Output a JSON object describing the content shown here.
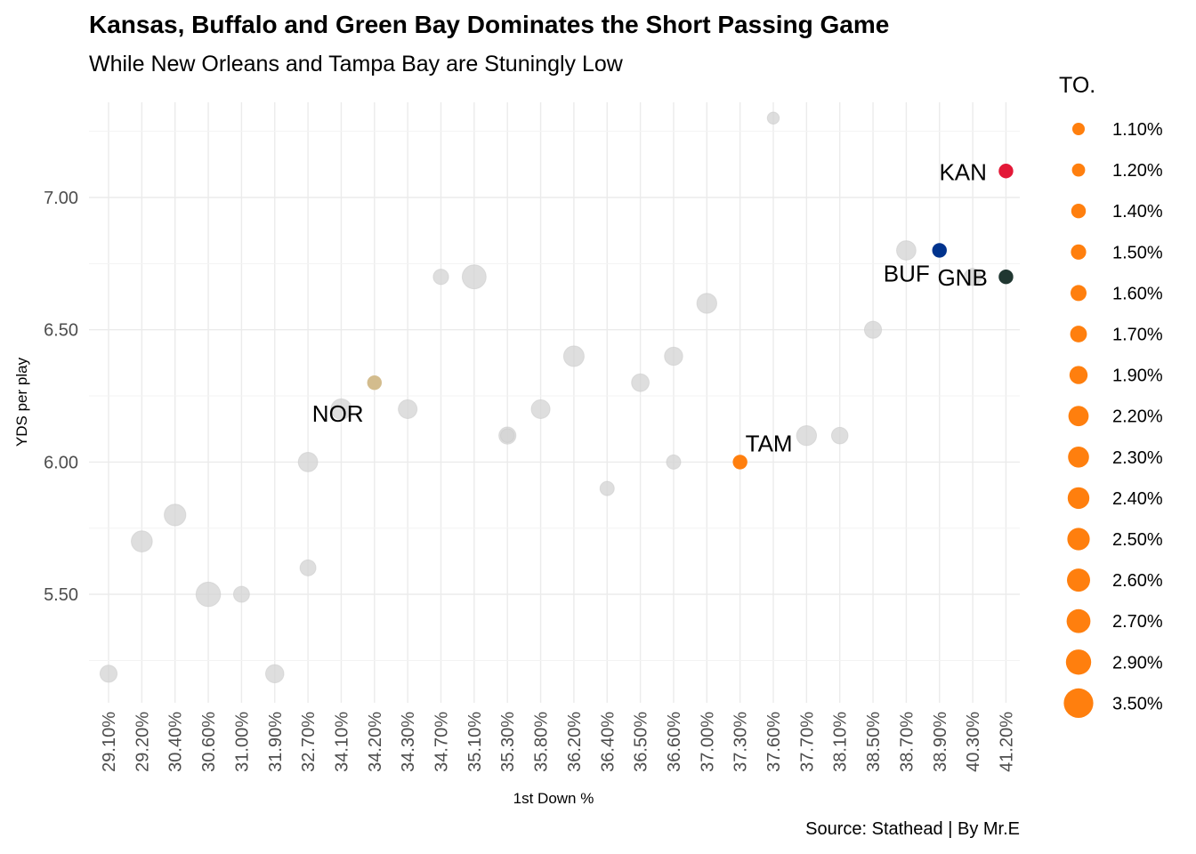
{
  "chart_data": {
    "type": "scatter",
    "title": "Kansas, Buffalo and Green Bay Dominates the Short Passing Game",
    "subtitle": "While New Orleans and Tampa Bay are Stuningly Low",
    "caption": "Source: Stathead | By Mr.E",
    "xlabel": "1st Down %",
    "ylabel": "YDS per play",
    "x_categories": [
      "29.10%",
      "29.20%",
      "30.40%",
      "30.60%",
      "31.00%",
      "31.90%",
      "32.70%",
      "34.10%",
      "34.20%",
      "34.30%",
      "34.70%",
      "35.10%",
      "35.30%",
      "35.80%",
      "36.20%",
      "36.40%",
      "36.50%",
      "36.60%",
      "37.00%",
      "37.30%",
      "37.60%",
      "37.70%",
      "38.10%",
      "38.50%",
      "38.70%",
      "38.90%",
      "40.30%",
      "41.20%"
    ],
    "y_ticks": [
      "5.50",
      "6.00",
      "6.50",
      "7.00"
    ],
    "ylim": [
      5.1,
      7.35
    ],
    "grid": true,
    "legend": {
      "title": "TO.",
      "position": "right",
      "items": [
        "1.10%",
        "1.20%",
        "1.40%",
        "1.50%",
        "1.60%",
        "1.70%",
        "1.90%",
        "2.20%",
        "2.30%",
        "2.40%",
        "2.50%",
        "2.60%",
        "2.70%",
        "2.90%",
        "3.50%"
      ],
      "color": "#FF7F0E"
    },
    "points": [
      {
        "x": "29.10%",
        "y": 5.2,
        "to": 2.0
      },
      {
        "x": "29.20%",
        "y": 5.7,
        "to": 2.7
      },
      {
        "x": "30.40%",
        "y": 5.8,
        "to": 2.8
      },
      {
        "x": "30.60%",
        "y": 5.5,
        "to": 3.3
      },
      {
        "x": "31.00%",
        "y": 5.5,
        "to": 1.8
      },
      {
        "x": "31.90%",
        "y": 5.2,
        "to": 2.2
      },
      {
        "x": "32.70%",
        "y": 6.0,
        "to": 2.4
      },
      {
        "x": "32.70%",
        "y": 5.6,
        "to": 1.8
      },
      {
        "x": "34.10%",
        "y": 6.2,
        "to": 2.6
      },
      {
        "x": "34.20%",
        "y": 6.3,
        "to": 1.9,
        "team": "NOR",
        "color": "#D3BC8D"
      },
      {
        "x": "34.30%",
        "y": 6.2,
        "to": 2.3
      },
      {
        "x": "34.70%",
        "y": 6.7,
        "to": 1.7
      },
      {
        "x": "35.10%",
        "y": 6.7,
        "to": 3.2
      },
      {
        "x": "35.30%",
        "y": 6.1,
        "to": 2.0
      },
      {
        "x": "35.30%",
        "y": 6.1,
        "to": 1.4
      },
      {
        "x": "35.80%",
        "y": 6.2,
        "to": 2.3
      },
      {
        "x": "36.20%",
        "y": 6.4,
        "to": 2.6
      },
      {
        "x": "36.40%",
        "y": 5.9,
        "to": 1.5
      },
      {
        "x": "36.50%",
        "y": 6.3,
        "to": 2.1
      },
      {
        "x": "36.60%",
        "y": 6.4,
        "to": 2.2
      },
      {
        "x": "36.60%",
        "y": 6.0,
        "to": 1.5
      },
      {
        "x": "37.00%",
        "y": 6.6,
        "to": 2.5
      },
      {
        "x": "37.30%",
        "y": 6.0,
        "to": 1.6,
        "team": "TAM",
        "color": "#FF7F0E"
      },
      {
        "x": "37.60%",
        "y": 7.3,
        "to": 1.1
      },
      {
        "x": "37.70%",
        "y": 6.1,
        "to": 2.5
      },
      {
        "x": "38.10%",
        "y": 6.1,
        "to": 1.9
      },
      {
        "x": "38.50%",
        "y": 6.5,
        "to": 2.0
      },
      {
        "x": "38.70%",
        "y": 6.8,
        "to": 2.4
      },
      {
        "x": "38.90%",
        "y": 6.8,
        "to": 1.3,
        "team": "BUF",
        "color": "#00338D"
      },
      {
        "x": "40.30%",
        "y": 6.7,
        "to": 2.0
      },
      {
        "x": "41.20%",
        "y": 7.1,
        "to": 1.8,
        "team": "KAN",
        "color": "#E31837"
      },
      {
        "x": "41.20%",
        "y": 6.7,
        "to": 1.8,
        "team": "GNB",
        "color": "#203731"
      }
    ],
    "colors": {
      "other": "#D3D3D3"
    }
  }
}
